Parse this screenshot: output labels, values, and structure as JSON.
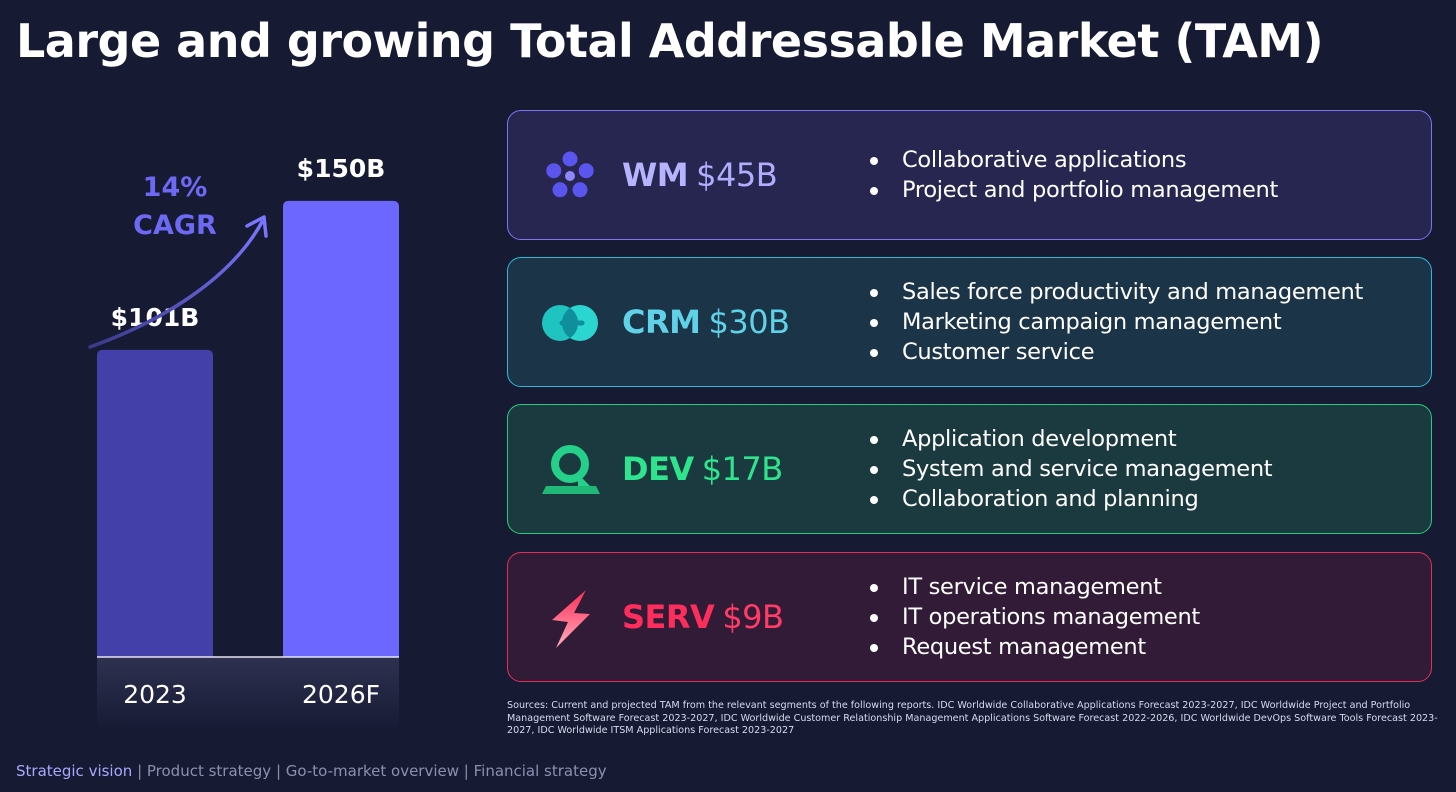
{
  "title": "Large and growing Total Addressable Market (TAM)",
  "chart_data": {
    "type": "bar",
    "categories": [
      "2023",
      "2026F"
    ],
    "values": [
      101,
      150
    ],
    "data_labels": [
      "$101B",
      "$150B"
    ],
    "unit": "$B",
    "ylim": [
      0,
      170
    ],
    "grid": false,
    "annotation": {
      "line1": "14%",
      "line2": "CAGR"
    },
    "colors": [
      "#4340aa",
      "#6b67ff"
    ]
  },
  "segments": [
    {
      "name": "WM",
      "value": "$45B",
      "icon": "wm-flower-icon",
      "color": "#b8b3ff",
      "value_color": "#b0adff",
      "border": "#7a74f0",
      "bg": "#262650",
      "bullets": [
        "Collaborative applications",
        "Project and portfolio management"
      ]
    },
    {
      "name": "CRM",
      "value": "$30B",
      "icon": "crm-rings-icon",
      "color": "#5fd2e8",
      "value_color": "#5fd2e8",
      "border": "#2bb9d6",
      "bg": "#1b3448",
      "bullets": [
        "Sales force productivity and management",
        "Marketing campaign management",
        "Customer service"
      ]
    },
    {
      "name": "DEV",
      "value": "$17B",
      "icon": "dev-loop-icon",
      "color": "#2ee58e",
      "value_color": "#2ee58e",
      "border": "#27c97e",
      "bg": "#1b3a40",
      "bullets": [
        "Application development",
        "System and service management",
        "Collaboration and planning"
      ]
    },
    {
      "name": "SERV",
      "value": "$9B",
      "icon": "serv-bolt-icon",
      "color": "#ff2d5c",
      "value_color": "#ff3b66",
      "border": "#e0305a",
      "bg": "#321b36",
      "bullets": [
        "IT service management",
        "IT operations management",
        "Request management"
      ]
    }
  ],
  "sources": "Sources: Current and projected TAM from the relevant segments of the following reports.  IDC Worldwide Collaborative Applications Forecast 2023-2027, IDC Worldwide Project and Portfolio Management Software Forecast 2023-2027, IDC Worldwide Customer Relationship Management Applications Software Forecast 2022-2026, IDC Worldwide DevOps Software Tools Forecast 2023-2027, IDC Worldwide ITSM Applications Forecast 2023-2027",
  "footer": {
    "active": "Strategic vision",
    "items": [
      "Product strategy",
      "Go-to-market overview",
      "Financial strategy"
    ]
  }
}
